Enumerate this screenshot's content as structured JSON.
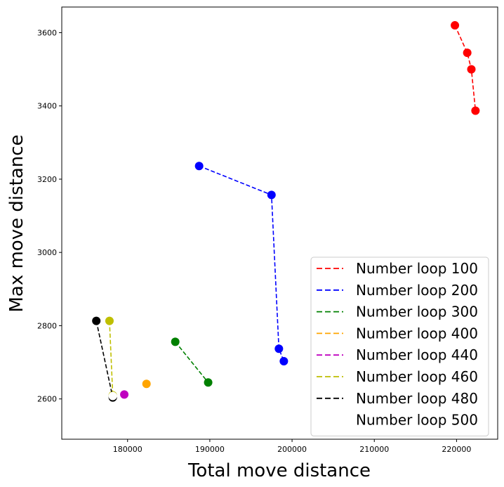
{
  "chart_data": {
    "type": "line",
    "xlabel": "Total move distance",
    "ylabel": "Max move distance",
    "xlim": [
      172000,
      225000
    ],
    "ylim": [
      2490,
      3670
    ],
    "xticks": [
      180000,
      190000,
      200000,
      210000,
      220000
    ],
    "xtick_labels": [
      "180000",
      "190000",
      "200000",
      "210000",
      "220000"
    ],
    "yticks": [
      2600,
      2800,
      3000,
      3200,
      3400,
      3600
    ],
    "ytick_labels": [
      "2600",
      "2800",
      "3000",
      "3200",
      "3400",
      "3600"
    ],
    "grid": false,
    "legend_position": "lower-right",
    "series": [
      {
        "name": "Number loop 100",
        "color": "#ff0000",
        "points": [
          [
            219800,
            3620
          ],
          [
            221300,
            3545
          ],
          [
            221800,
            3500
          ],
          [
            222300,
            3387
          ]
        ]
      },
      {
        "name": "Number loop 200",
        "color": "#0000ff",
        "points": [
          [
            188700,
            3236
          ],
          [
            197500,
            3157
          ],
          [
            198400,
            2737
          ],
          [
            199000,
            2703
          ]
        ]
      },
      {
        "name": "Number loop 300",
        "color": "#008000",
        "points": [
          [
            185800,
            2756
          ],
          [
            189800,
            2645
          ]
        ]
      },
      {
        "name": "Number loop 400",
        "color": "#ffa500",
        "points": [
          [
            182300,
            2641
          ]
        ]
      },
      {
        "name": "Number loop 440",
        "color": "#bf00bf",
        "points": [
          [
            179600,
            2612
          ]
        ]
      },
      {
        "name": "Number loop 460",
        "color": "#bfbf00",
        "points": [
          [
            177800,
            2813
          ],
          [
            178200,
            2610
          ]
        ]
      },
      {
        "name": "Number loop 480",
        "color": "#000000",
        "points": [
          [
            176200,
            2813
          ],
          [
            178200,
            2604
          ]
        ]
      },
      {
        "name": "Number loop 500",
        "color": "#ffffff",
        "points": [
          [
            178200,
            2608
          ]
        ]
      }
    ]
  }
}
